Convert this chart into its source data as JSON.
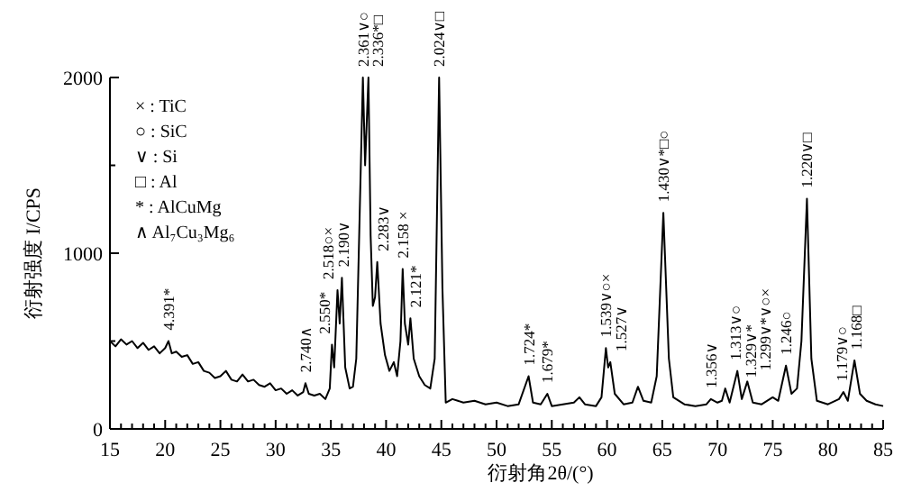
{
  "chart_data": {
    "type": "line",
    "xlabel": "衍射角2θ/(°)",
    "ylabel": "衍射强度 I/CPS",
    "xlim": [
      15,
      85
    ],
    "ylim": [
      0,
      2000
    ],
    "xticks": [
      15,
      {
        "value": 16,
        "label": null
      },
      {
        "value": 17,
        "label": null
      },
      {
        "value": 18,
        "label": null
      },
      {
        "value": 19,
        "label": null
      },
      20,
      {
        "value": 21,
        "label": null
      },
      {
        "value": 22,
        "label": null
      },
      {
        "value": 23,
        "label": null
      },
      {
        "value": 24,
        "label": null
      },
      25,
      {
        "value": 26,
        "label": null
      },
      {
        "value": 27,
        "label": null
      },
      {
        "value": 28,
        "label": null
      },
      {
        "value": 29,
        "label": null
      },
      30,
      {
        "value": 31,
        "label": null
      },
      {
        "value": 32,
        "label": null
      },
      {
        "value": 33,
        "label": null
      },
      {
        "value": 34,
        "label": null
      },
      35,
      {
        "value": 36,
        "label": null
      },
      {
        "value": 37,
        "label": null
      },
      {
        "value": 38,
        "label": null
      },
      {
        "value": 39,
        "label": null
      },
      40,
      {
        "value": 41,
        "label": null
      },
      {
        "value": 42,
        "label": null
      },
      {
        "value": 43,
        "label": null
      },
      {
        "value": 44,
        "label": null
      },
      45,
      {
        "value": 46,
        "label": null
      },
      {
        "value": 47,
        "label": null
      },
      {
        "value": 48,
        "label": null
      },
      {
        "value": 49,
        "label": null
      },
      50,
      {
        "value": 51,
        "label": null
      },
      {
        "value": 52,
        "label": null
      },
      {
        "value": 53,
        "label": null
      },
      {
        "value": 54,
        "label": null
      },
      55,
      {
        "value": 56,
        "label": null
      },
      {
        "value": 57,
        "label": null
      },
      {
        "value": 58,
        "label": null
      },
      {
        "value": 59,
        "label": null
      },
      60,
      {
        "value": 61,
        "label": null
      },
      {
        "value": 62,
        "label": null
      },
      {
        "value": 63,
        "label": null
      },
      {
        "value": 64,
        "label": null
      },
      65,
      {
        "value": 66,
        "label": null
      },
      {
        "value": 67,
        "label": null
      },
      {
        "value": 68,
        "label": null
      },
      {
        "value": 69,
        "label": null
      },
      70,
      {
        "value": 71,
        "label": null
      },
      {
        "value": 72,
        "label": null
      },
      {
        "value": 73,
        "label": null
      },
      {
        "value": 74,
        "label": null
      },
      75,
      {
        "value": 76,
        "label": null
      },
      {
        "value": 77,
        "label": null
      },
      {
        "value": 78,
        "label": null
      },
      {
        "value": 79,
        "label": null
      },
      80,
      {
        "value": 81,
        "label": null
      },
      {
        "value": 82,
        "label": null
      },
      {
        "value": 83,
        "label": null
      },
      {
        "value": 84,
        "label": null
      },
      85
    ],
    "yticks": [
      0,
      {
        "value": 500,
        "label": null
      },
      1000,
      {
        "value": 1500,
        "label": null
      },
      2000
    ],
    "grid": false,
    "marker": "none",
    "line_style": "solid",
    "series": [
      {
        "color": "#000000",
        "x": [
          15,
          15.5,
          16,
          16.5,
          17,
          17.5,
          18,
          18.5,
          19,
          19.5,
          20,
          20.3,
          20.6,
          21,
          21.5,
          22,
          22.5,
          23,
          23.5,
          24,
          24.5,
          25,
          25.5,
          26,
          26.5,
          27,
          27.5,
          28,
          28.5,
          29,
          29.5,
          30,
          30.5,
          31,
          31.5,
          32,
          32.5,
          32.7,
          33,
          33.5,
          34,
          34.5,
          34.9,
          35.1,
          35.3,
          35.6,
          35.8,
          36.0,
          36.3,
          36.7,
          37.0,
          37.3,
          37.6,
          37.9,
          38.1,
          38.4,
          38.6,
          38.8,
          39.0,
          39.2,
          39.5,
          39.9,
          40.3,
          40.7,
          41.0,
          41.3,
          41.5,
          41.7,
          42.0,
          42.2,
          42.5,
          43.0,
          43.5,
          44.0,
          44.4,
          44.8,
          45.1,
          45.4,
          46,
          47,
          48,
          49,
          50,
          51,
          52,
          52.9,
          53.3,
          54,
          54.6,
          55,
          56,
          57,
          57.5,
          58,
          59,
          59.5,
          59.9,
          60.1,
          60.3,
          60.7,
          61.5,
          62.3,
          62.8,
          63.3,
          64,
          64.5,
          65.1,
          65.6,
          66,
          67,
          68,
          69,
          69.4,
          70,
          70.4,
          70.7,
          71.1,
          71.8,
          72.2,
          72.7,
          73.2,
          74,
          75,
          75.5,
          76.2,
          76.7,
          77.2,
          77.6,
          78.1,
          78.5,
          79,
          80,
          81,
          81.4,
          81.8,
          82.4,
          82.9,
          83.5,
          84.3,
          85
        ],
        "values": [
          500,
          470,
          510,
          480,
          500,
          460,
          490,
          450,
          470,
          430,
          460,
          500,
          430,
          440,
          410,
          420,
          370,
          380,
          330,
          320,
          290,
          300,
          330,
          280,
          270,
          310,
          270,
          280,
          250,
          240,
          260,
          220,
          230,
          200,
          220,
          190,
          210,
          260,
          200,
          190,
          200,
          170,
          230,
          480,
          350,
          790,
          600,
          860,
          350,
          230,
          240,
          400,
          1200,
          2000,
          1500,
          2000,
          1100,
          700,
          750,
          950,
          600,
          420,
          330,
          380,
          300,
          500,
          910,
          600,
          480,
          630,
          400,
          300,
          250,
          230,
          400,
          2000,
          800,
          150,
          170,
          150,
          160,
          140,
          150,
          130,
          140,
          300,
          150,
          140,
          200,
          130,
          140,
          150,
          180,
          140,
          130,
          180,
          460,
          350,
          380,
          200,
          140,
          150,
          240,
          160,
          150,
          300,
          1230,
          400,
          180,
          140,
          130,
          140,
          170,
          150,
          160,
          230,
          150,
          330,
          170,
          270,
          150,
          140,
          180,
          160,
          360,
          200,
          230,
          500,
          1310,
          400,
          160,
          140,
          170,
          210,
          160,
          390,
          200,
          160,
          140,
          130
        ]
      }
    ],
    "annotations": [
      "× : TiC",
      "○ : SiC",
      "∨ : Si",
      "□ : Al",
      "* : AlCuMg",
      "∧ Al₇Cu₃Mg₆",
      {
        "text": "4.391*",
        "x": 20.3,
        "y": 500
      },
      {
        "text": "2.740∧",
        "x": 32.7,
        "y": 260
      },
      {
        "text": "2.550*",
        "x": 35.1,
        "y": 480
      },
      {
        "text": "2.518○×",
        "x": 35.6,
        "y": 790
      },
      {
        "text": "2.190∨",
        "x": 36.0,
        "y": 860
      },
      {
        "text": "2.361∨○",
        "x": 37.9,
        "y": 2000
      },
      {
        "text": "2.336*□",
        "x": 38.4,
        "y": 2000
      },
      {
        "text": "2.283∨",
        "x": 39.2,
        "y": 950
      },
      {
        "text": "2.158 ×",
        "x": 41.5,
        "y": 910
      },
      {
        "text": "2.121*",
        "x": 42.2,
        "y": 630
      },
      {
        "text": "2.024∨□",
        "x": 44.8,
        "y": 2000
      },
      {
        "text": "1.724*",
        "x": 52.9,
        "y": 300
      },
      {
        "text": "1.679*",
        "x": 54.6,
        "y": 200
      },
      {
        "text": "1.539∨○×",
        "x": 59.9,
        "y": 460
      },
      {
        "text": "1.527∨",
        "x": 60.3,
        "y": 380
      },
      {
        "text": "1.430∨*□○",
        "x": 65.1,
        "y": 1230
      },
      {
        "text": "1.356∨",
        "x": 69.4,
        "y": 170
      },
      {
        "text": "1.329∨*",
        "x": 70.7,
        "y": 230
      },
      {
        "text": "1.313∨○",
        "x": 71.8,
        "y": 330
      },
      {
        "text": "1.299∨*∨○×",
        "x": 72.7,
        "y": 270
      },
      {
        "text": "1.246○",
        "x": 76.2,
        "y": 360
      },
      {
        "text": "1.220∨□",
        "x": 78.1,
        "y": 1310
      },
      {
        "text": "1.179∨○",
        "x": 81.4,
        "y": 210
      },
      {
        "text": "1.168□",
        "x": 82.4,
        "y": 390
      }
    ]
  }
}
